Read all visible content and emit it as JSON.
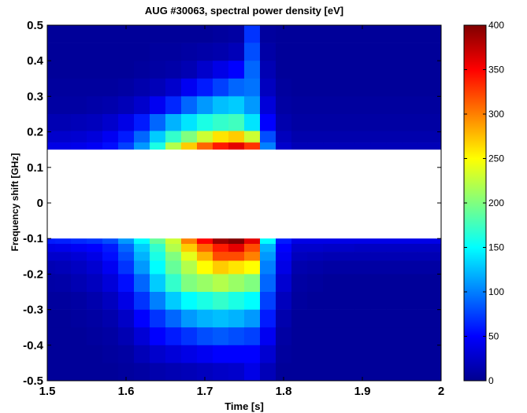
{
  "chart_data": {
    "type": "heatmap",
    "title": "AUG #30063, spectral power density [eV]",
    "xlabel": "Time [s]",
    "ylabel": "Frequency shift [GHz]",
    "xlim": [
      1.5,
      2.0
    ],
    "ylim": [
      -0.5,
      0.5
    ],
    "x_ticks": [
      "1.5",
      "1.6",
      "1.7",
      "1.8",
      "1.9",
      "2"
    ],
    "y_ticks": [
      "-0.5",
      "-0.4",
      "-0.3",
      "-0.2",
      "-0.1",
      "0",
      "0.1",
      "0.2",
      "0.3",
      "0.4",
      "0.5"
    ],
    "colorbar": {
      "range": [
        0,
        400
      ],
      "ticks": [
        "0",
        "50",
        "100",
        "150",
        "200",
        "250",
        "300",
        "350",
        "400"
      ],
      "colormap": "jet"
    },
    "masked_band": [
      -0.1,
      0.15
    ],
    "x": [
      1.5,
      1.52,
      1.54,
      1.56,
      1.58,
      1.6,
      1.62,
      1.64,
      1.66,
      1.68,
      1.7,
      1.72,
      1.74,
      1.76,
      1.78,
      1.8,
      1.82,
      1.84,
      1.86,
      1.88,
      1.9,
      1.92,
      1.94,
      1.96,
      1.98
    ],
    "y": [
      0.475,
      0.425,
      0.375,
      0.325,
      0.275,
      0.225,
      0.18,
      0.16,
      -0.105,
      -0.125,
      -0.15,
      -0.175,
      -0.225,
      -0.275,
      -0.325,
      -0.375,
      -0.425,
      -0.475
    ],
    "z": [
      [
        10,
        10,
        10,
        10,
        10,
        10,
        10,
        10,
        10,
        10,
        10,
        12,
        14,
        70,
        12,
        10,
        10,
        10,
        10,
        10,
        10,
        10,
        10,
        10,
        10
      ],
      [
        10,
        10,
        10,
        10,
        10,
        10,
        10,
        12,
        12,
        14,
        16,
        18,
        22,
        80,
        15,
        10,
        10,
        10,
        10,
        10,
        10,
        10,
        10,
        10,
        10
      ],
      [
        10,
        10,
        10,
        10,
        10,
        10,
        12,
        14,
        16,
        20,
        30,
        40,
        50,
        90,
        20,
        10,
        10,
        10,
        10,
        10,
        10,
        10,
        10,
        10,
        10
      ],
      [
        12,
        12,
        12,
        12,
        12,
        14,
        18,
        22,
        30,
        45,
        60,
        75,
        90,
        95,
        25,
        12,
        10,
        10,
        10,
        10,
        10,
        10,
        10,
        10,
        10
      ],
      [
        14,
        14,
        14,
        16,
        18,
        22,
        30,
        45,
        65,
        90,
        110,
        125,
        130,
        110,
        35,
        14,
        12,
        12,
        12,
        12,
        12,
        12,
        12,
        12,
        12
      ],
      [
        20,
        20,
        22,
        24,
        30,
        40,
        60,
        90,
        120,
        140,
        160,
        170,
        175,
        140,
        50,
        18,
        14,
        14,
        14,
        14,
        14,
        14,
        14,
        14,
        14
      ],
      [
        30,
        30,
        32,
        36,
        45,
        60,
        90,
        130,
        170,
        200,
        230,
        260,
        270,
        230,
        80,
        24,
        18,
        18,
        18,
        18,
        18,
        18,
        18,
        18,
        18
      ],
      [
        40,
        40,
        42,
        46,
        55,
        75,
        110,
        160,
        220,
        270,
        310,
        340,
        360,
        330,
        100,
        30,
        22,
        22,
        22,
        22,
        22,
        22,
        22,
        22,
        22
      ],
      [
        60,
        62,
        66,
        70,
        80,
        110,
        150,
        190,
        230,
        300,
        350,
        390,
        400,
        360,
        150,
        60,
        40,
        40,
        40,
        40,
        40,
        40,
        40,
        40,
        40
      ],
      [
        40,
        42,
        46,
        50,
        60,
        90,
        130,
        170,
        220,
        270,
        310,
        340,
        360,
        320,
        120,
        50,
        30,
        30,
        28,
        28,
        26,
        26,
        26,
        26,
        26
      ],
      [
        30,
        30,
        34,
        40,
        55,
        80,
        120,
        160,
        200,
        240,
        280,
        320,
        320,
        300,
        110,
        45,
        24,
        22,
        20,
        20,
        20,
        20,
        20,
        20,
        20
      ],
      [
        20,
        22,
        26,
        32,
        45,
        70,
        110,
        150,
        190,
        220,
        250,
        270,
        260,
        250,
        100,
        40,
        18,
        16,
        14,
        14,
        14,
        14,
        14,
        14,
        14
      ],
      [
        15,
        16,
        20,
        25,
        35,
        55,
        90,
        130,
        170,
        200,
        210,
        220,
        210,
        200,
        90,
        32,
        14,
        12,
        10,
        10,
        10,
        10,
        10,
        10,
        10
      ],
      [
        12,
        12,
        14,
        18,
        25,
        40,
        70,
        100,
        130,
        150,
        160,
        170,
        160,
        150,
        75,
        24,
        12,
        10,
        10,
        10,
        10,
        10,
        10,
        10,
        10
      ],
      [
        10,
        10,
        12,
        14,
        18,
        28,
        50,
        70,
        90,
        110,
        120,
        125,
        120,
        110,
        60,
        18,
        10,
        10,
        10,
        10,
        10,
        10,
        10,
        10,
        10
      ],
      [
        10,
        10,
        10,
        12,
        14,
        20,
        34,
        50,
        60,
        70,
        80,
        85,
        80,
        75,
        45,
        14,
        10,
        10,
        10,
        10,
        10,
        10,
        10,
        10,
        10
      ],
      [
        10,
        10,
        10,
        10,
        12,
        14,
        22,
        30,
        35,
        40,
        45,
        50,
        50,
        50,
        32,
        12,
        10,
        10,
        10,
        10,
        10,
        10,
        10,
        10,
        10
      ],
      [
        10,
        10,
        10,
        10,
        10,
        12,
        14,
        18,
        20,
        22,
        25,
        28,
        30,
        40,
        22,
        10,
        10,
        10,
        10,
        10,
        10,
        10,
        10,
        10,
        10
      ]
    ]
  }
}
